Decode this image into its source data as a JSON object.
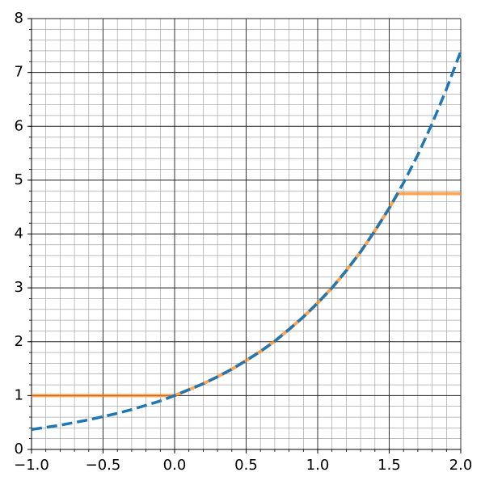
{
  "chart_data": {
    "type": "line",
    "x": [
      -1.0,
      -0.9,
      -0.8,
      -0.7,
      -0.6,
      -0.5,
      -0.4,
      -0.3,
      -0.2,
      -0.1,
      0.0,
      0.1,
      0.2,
      0.3,
      0.4,
      0.5,
      0.6,
      0.7,
      0.8,
      0.9,
      1.0,
      1.1,
      1.2,
      1.3,
      1.4,
      1.5,
      1.56,
      1.6,
      1.7,
      1.8,
      1.9,
      2.0
    ],
    "series": [
      {
        "color": "#1f77b4",
        "dashed": true,
        "values": [
          0.37,
          0.41,
          0.45,
          0.5,
          0.55,
          0.61,
          0.67,
          0.74,
          0.82,
          0.9,
          1.0,
          1.11,
          1.22,
          1.35,
          1.49,
          1.65,
          1.82,
          2.01,
          2.23,
          2.46,
          2.72,
          3.0,
          3.32,
          3.67,
          4.06,
          4.48,
          4.76,
          4.95,
          5.47,
          6.05,
          6.69,
          7.39
        ]
      },
      {
        "color": "#ff7f0e",
        "dashed": false,
        "values": [
          1,
          1,
          1,
          1,
          1,
          1,
          1,
          1,
          1,
          1,
          1.0,
          1.11,
          1.22,
          1.35,
          1.49,
          1.65,
          1.82,
          2.01,
          2.23,
          2.46,
          2.72,
          3.0,
          3.32,
          3.67,
          4.06,
          4.48,
          4.75,
          4.75,
          4.75,
          4.75,
          4.75,
          4.75
        ]
      }
    ],
    "xlim": [
      -1.0,
      2.0
    ],
    "ylim": [
      0,
      8
    ],
    "xticks": [
      {
        "value": -1.0,
        "label": "−1.0"
      },
      {
        "value": -0.5,
        "label": "−0.5"
      },
      {
        "value": 0.0,
        "label": "0.0"
      },
      {
        "value": 0.5,
        "label": "0.5"
      },
      {
        "value": 1.0,
        "label": "1.0"
      },
      {
        "value": 1.5,
        "label": "1.5"
      },
      {
        "value": 2.0,
        "label": "2.0"
      }
    ],
    "yticks": [
      0,
      1,
      2,
      3,
      4,
      5,
      6,
      7,
      8
    ],
    "grid": true,
    "xminor_step": 0.1,
    "yminor_step": 0.2
  }
}
